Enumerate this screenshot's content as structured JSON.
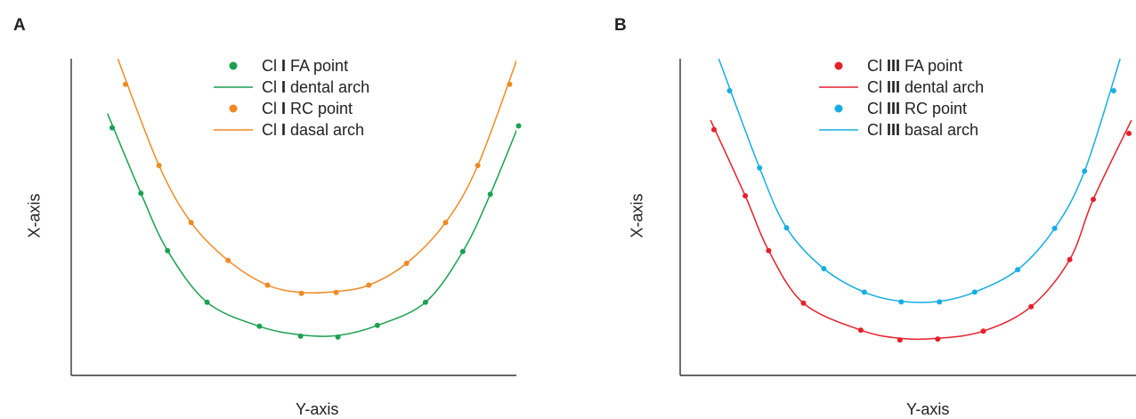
{
  "panels": [
    {
      "letter": "A",
      "xlabel": "Y-axis",
      "ylabel": "X-axis",
      "legend": [
        {
          "kind": "point",
          "prefix": "Cl ",
          "grade": "I",
          "suffix": " FA point",
          "color": "#1aa152"
        },
        {
          "kind": "line",
          "prefix": "Cl ",
          "grade": "I",
          "suffix": " dental arch",
          "color": "#1aa152"
        },
        {
          "kind": "point",
          "prefix": "Cl ",
          "grade": "I",
          "suffix": " RC point",
          "color": "#ef8a24"
        },
        {
          "kind": "line",
          "prefix": "Cl ",
          "grade": "I",
          "suffix": " dasal arch",
          "color": "#ef8a24"
        }
      ]
    },
    {
      "letter": "B",
      "xlabel": "Y-axis",
      "ylabel": "X-axis",
      "legend": [
        {
          "kind": "point",
          "prefix": "Cl ",
          "grade": "III",
          "suffix": " FA point",
          "color": "#e5202a"
        },
        {
          "kind": "line",
          "prefix": "Cl ",
          "grade": "III",
          "suffix": " dental arch",
          "color": "#e5202a"
        },
        {
          "kind": "point",
          "prefix": "Cl ",
          "grade": "III",
          "suffix": " RC point",
          "color": "#15aee3"
        },
        {
          "kind": "line",
          "prefix": "Cl ",
          "grade": "III",
          "suffix": " basal arch",
          "color": "#15aee3"
        }
      ]
    }
  ],
  "chart_data": [
    {
      "type": "scatter",
      "title": "",
      "xlabel": "Y-axis",
      "ylabel": "X-axis",
      "xlim": [
        0,
        100
      ],
      "ylim": [
        0,
        100
      ],
      "grid": false,
      "legend_position": "top-center",
      "series": [
        {
          "name": "Cl I FA point",
          "type": "scatter",
          "color": "#1aa152",
          "x": [
            5.4,
            12.1,
            18.3,
            27.5,
            39.7,
            49.3,
            58.0,
            67.2,
            78.4,
            87.1,
            93.5,
            100.1
          ],
          "y": [
            78.2,
            57.5,
            39.4,
            23.1,
            15.5,
            12.4,
            12.1,
            15.8,
            23.1,
            39.1,
            57.2,
            78.8
          ]
        },
        {
          "name": "Cl I dental arch",
          "type": "line",
          "color": "#1aa152",
          "x": [
            4.3,
            12.1,
            18.3,
            27.5,
            39.7,
            49.3,
            58.0,
            67.2,
            78.4,
            87.1,
            93.5,
            101.2
          ],
          "y": [
            82.7,
            57.5,
            39.4,
            23.1,
            15.5,
            12.8,
            12.6,
            15.8,
            23.1,
            39.1,
            57.2,
            82.7
          ]
        },
        {
          "name": "Cl I RC point",
          "type": "scatter",
          "color": "#ef8a24",
          "x": [
            8.5,
            16.3,
            23.8,
            32.4,
            41.6,
            49.5,
            57.6,
            65.2,
            74.0,
            83.1,
            90.6,
            98.0
          ],
          "y": [
            91.9,
            66.3,
            48.3,
            36.3,
            28.5,
            25.9,
            26.2,
            28.5,
            35.4,
            48.3,
            66.3,
            91.9
          ]
        },
        {
          "name": "Cl I dasal arch",
          "type": "line",
          "color": "#ef8a24",
          "x": [
            6.7,
            16.3,
            23.8,
            32.4,
            41.6,
            49.5,
            57.6,
            65.2,
            74.0,
            83.1,
            90.6,
            99.8
          ],
          "y": [
            100.0,
            66.3,
            48.3,
            36.3,
            28.5,
            26.2,
            26.5,
            28.5,
            35.4,
            48.3,
            66.3,
            100.0
          ]
        }
      ]
    },
    {
      "type": "scatter",
      "title": "",
      "xlabel": "Y-axis",
      "ylabel": "X-axis",
      "xlim": [
        0,
        100
      ],
      "ylim": [
        0,
        100
      ],
      "grid": false,
      "legend_position": "top-center",
      "series": [
        {
          "name": "Cl III FA point",
          "type": "scatter",
          "color": "#e5202a",
          "x": [
            4.5,
            11.7,
            17.1,
            25.1,
            38.3,
            47.3,
            56.0,
            66.5,
            77.5,
            86.4,
            91.8,
            100.0
          ],
          "y": [
            77.6,
            56.7,
            39.4,
            22.8,
            14.3,
            11.2,
            11.5,
            14.0,
            21.7,
            36.6,
            55.6,
            76.4
          ]
        },
        {
          "name": "Cl III dental arch",
          "type": "line",
          "color": "#e5202a",
          "x": [
            3.7,
            11.7,
            17.1,
            25.1,
            38.3,
            47.3,
            56.0,
            66.5,
            77.5,
            86.4,
            91.8,
            100.6
          ],
          "y": [
            80.6,
            56.7,
            39.4,
            22.8,
            14.3,
            11.7,
            11.7,
            14.0,
            21.7,
            36.6,
            55.6,
            80.6
          ]
        },
        {
          "name": "Cl III RC point",
          "type": "scatter",
          "color": "#15aee3",
          "x": [
            8.1,
            15.0,
            21.2,
            29.8,
            39.1,
            47.6,
            56.4,
            64.5,
            74.4,
            82.9,
            89.8,
            96.5
          ],
          "y": [
            89.9,
            65.5,
            46.6,
            33.7,
            26.3,
            23.2,
            23.2,
            26.3,
            33.4,
            46.4,
            64.5,
            89.9
          ]
        },
        {
          "name": "Cl III basal arch",
          "type": "line",
          "color": "#15aee3",
          "x": [
            5.6,
            15.0,
            21.2,
            29.8,
            39.1,
            47.6,
            56.4,
            64.5,
            74.4,
            82.9,
            89.8,
            98.0
          ],
          "y": [
            100.0,
            65.5,
            46.6,
            33.7,
            26.3,
            23.4,
            23.4,
            26.3,
            33.4,
            46.4,
            64.5,
            100.0
          ]
        }
      ]
    }
  ]
}
